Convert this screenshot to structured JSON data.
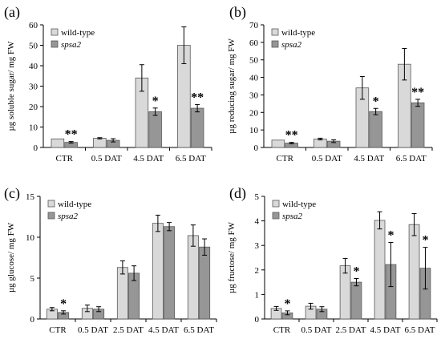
{
  "colors": {
    "wild_type": "#d9d9d9",
    "spsa2": "#969696",
    "stroke": "#595959"
  },
  "legend": {
    "wild_type": "wild-type",
    "spsa2": "spsa2"
  },
  "chart_data": [
    {
      "type": "bar",
      "panel": "(a)",
      "ylabel": "µg soluble sugar/ mg FW",
      "ylim": [
        0,
        60
      ],
      "yticks": [
        0,
        10,
        20,
        30,
        40,
        50,
        60
      ],
      "categories": [
        "CTR",
        "0.5 DAT",
        "4.5 DAT",
        "6.5 DAT"
      ],
      "legend": "top-left",
      "series": [
        {
          "name": "wild-type",
          "values": [
            4.2,
            4.5,
            34,
            50
          ],
          "errors": [
            0,
            0.3,
            6.5,
            9
          ]
        },
        {
          "name": "spsa2",
          "values": [
            2.5,
            3.5,
            17.5,
            19.2
          ],
          "errors": [
            0.4,
            0.8,
            1.8,
            1.8
          ]
        }
      ],
      "annotations": [
        "**",
        "",
        "*",
        "**"
      ]
    },
    {
      "type": "bar",
      "panel": "(b)",
      "ylabel": "µg reducing sugar/ mg FW",
      "ylim": [
        0,
        70
      ],
      "yticks": [
        0,
        10,
        20,
        30,
        40,
        50,
        60,
        70
      ],
      "categories": [
        "CTR",
        "0.5 DAT",
        "4.5 DAT",
        "6.5 DAT"
      ],
      "legend": "top-left",
      "series": [
        {
          "name": "wild-type",
          "values": [
            4.2,
            4.8,
            34,
            47.5
          ],
          "errors": [
            0,
            0.5,
            6.5,
            9
          ]
        },
        {
          "name": "spsa2",
          "values": [
            2.5,
            3.6,
            20.5,
            25.5
          ],
          "errors": [
            0.4,
            0.8,
            1.8,
            2.0
          ]
        }
      ],
      "annotations": [
        "**",
        "",
        "*",
        "**"
      ]
    },
    {
      "type": "bar",
      "panel": "(c)",
      "ylabel": "µg glucose/ mg FW",
      "ylim": [
        0,
        15
      ],
      "yticks": [
        0,
        5,
        10,
        15
      ],
      "categories": [
        "CTR",
        "0.5 DAT",
        "2.5 DAT",
        "4.5 DAT",
        "6.5 DAT"
      ],
      "legend": "top-left",
      "series": [
        {
          "name": "wild-type",
          "values": [
            1.2,
            1.3,
            6.3,
            11.7,
            10.2
          ],
          "errors": [
            0.2,
            0.4,
            0.8,
            1.0,
            1.3
          ]
        },
        {
          "name": "spsa2",
          "values": [
            0.8,
            1.2,
            5.6,
            11.3,
            8.8
          ],
          "errors": [
            0.2,
            0.3,
            0.9,
            0.5,
            1.0
          ]
        }
      ],
      "annotations": [
        "*",
        "",
        "",
        "",
        ""
      ]
    },
    {
      "type": "bar",
      "panel": "(d)",
      "ylabel": "µg fructose/ mg FW",
      "ylim": [
        0,
        5
      ],
      "yticks": [
        0,
        1,
        2,
        3,
        4,
        5
      ],
      "categories": [
        "CTR",
        "0.5 DAT",
        "2.5 DAT",
        "4.5 DAT",
        "6.5 DAT"
      ],
      "legend": "top-left",
      "series": [
        {
          "name": "wild-type",
          "values": [
            0.43,
            0.52,
            2.17,
            4.02,
            3.85
          ],
          "errors": [
            0.08,
            0.12,
            0.3,
            0.35,
            0.45
          ]
        },
        {
          "name": "spsa2",
          "values": [
            0.25,
            0.4,
            1.5,
            2.22,
            2.07
          ],
          "errors": [
            0.08,
            0.1,
            0.15,
            0.9,
            0.85
          ]
        }
      ],
      "annotations": [
        "*",
        "",
        "*",
        "*",
        "*"
      ]
    }
  ]
}
